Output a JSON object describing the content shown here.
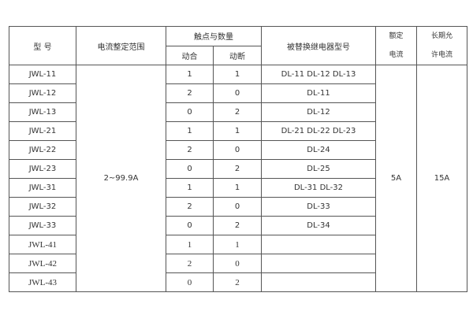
{
  "headers": {
    "model": "型  号",
    "current_range": "电流整定范围",
    "contacts": "触点与数量",
    "make": "动合",
    "break": "动断",
    "replaced": "被替换继电器型号",
    "rated_1": "额定",
    "rated_2": "电流",
    "longterm_1": "长期允",
    "longterm_2": "许电流"
  },
  "current_range": "2~99.9A",
  "rated_current": "5A",
  "longterm_current": "15A",
  "rows": [
    {
      "model": "JWL-11",
      "make": "1",
      "break": "1",
      "replaced": "DL-11 DL-12 DL-13"
    },
    {
      "model": "JWL-12",
      "make": "2",
      "break": "0",
      "replaced": "DL-11"
    },
    {
      "model": "JWL-13",
      "make": "0",
      "break": "2",
      "replaced": "DL-12"
    },
    {
      "model": "JWL-21",
      "make": "1",
      "break": "1",
      "replaced": "DL-21 DL-22 DL-23"
    },
    {
      "model": "JWL-22",
      "make": "2",
      "break": "0",
      "replaced": "DL-24"
    },
    {
      "model": "JWL-23",
      "make": "0",
      "break": "2",
      "replaced": "DL-25"
    },
    {
      "model": "JWL-31",
      "make": "1",
      "break": "1",
      "replaced": "DL-31  DL-32"
    },
    {
      "model": "JWL-32",
      "make": "2",
      "break": "0",
      "replaced": "DL-33"
    },
    {
      "model": "JWL-33",
      "make": "0",
      "break": "2",
      "replaced": "DL-34"
    },
    {
      "model": "JWL-41",
      "make": "1",
      "break": "1",
      "replaced": ""
    },
    {
      "model": "JWL-42",
      "make": "2",
      "break": "0",
      "replaced": ""
    },
    {
      "model": "JWL-43",
      "make": "0",
      "break": "2",
      "replaced": ""
    }
  ]
}
